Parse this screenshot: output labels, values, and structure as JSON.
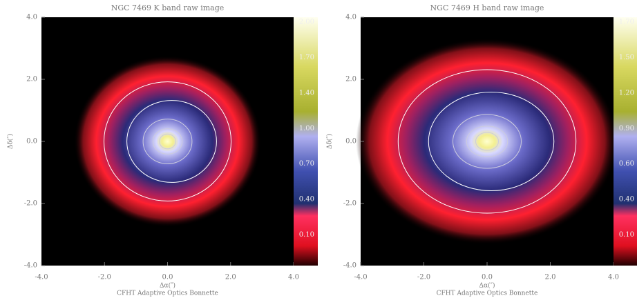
{
  "chart_data": [
    {
      "type": "image",
      "title": "NGC 7469 K band raw image",
      "x_label": "Δα(″)",
      "y_label": "Δδ(″)",
      "xlim": [
        -4,
        4
      ],
      "ylim": [
        -4,
        4
      ],
      "xticks": [
        {
          "value": -4,
          "label": "-4.0"
        },
        {
          "value": -2,
          "label": "-2.0"
        },
        {
          "value": 0,
          "label": "0.0"
        },
        {
          "value": 2,
          "label": "2.0"
        },
        {
          "value": 4,
          "label": "4.0"
        }
      ],
      "yticks": [
        {
          "value": -4,
          "label": "-4.0"
        },
        {
          "value": -2,
          "label": "-2.0"
        },
        {
          "value": 0,
          "label": "0.0"
        },
        {
          "value": 2,
          "label": "2.0"
        },
        {
          "value": 4,
          "label": "4.0"
        }
      ],
      "colorbar_ticks": [
        "2.00",
        "1.70",
        "1.40",
        "1.00",
        "0.70",
        "0.40",
        "0.10"
      ],
      "credit": "CFHT Adaptive Optics Bonnette"
    },
    {
      "type": "image",
      "title": "NGC 7469 H band raw image",
      "x_label": "Δα(″)",
      "y_label": "Δδ(″)",
      "xlim": [
        -4,
        4
      ],
      "ylim": [
        -4,
        4
      ],
      "xticks": [
        {
          "value": -4,
          "label": "-4.0"
        },
        {
          "value": -2,
          "label": "-2.0"
        },
        {
          "value": 0,
          "label": "0.0"
        },
        {
          "value": 2,
          "label": "2.0"
        },
        {
          "value": 4,
          "label": "4.0"
        }
      ],
      "yticks": [
        {
          "value": -4,
          "label": "-4.0"
        },
        {
          "value": -2,
          "label": "-2.0"
        },
        {
          "value": 0,
          "label": "0.0"
        },
        {
          "value": 2,
          "label": "2.0"
        },
        {
          "value": 4,
          "label": "4.0"
        }
      ],
      "colorbar_ticks": [
        "1.70",
        "1.50",
        "1.20",
        "0.90",
        "0.60",
        "0.40",
        "0.10"
      ],
      "credit": "CFHT Adaptive Optics Bonnette"
    }
  ]
}
